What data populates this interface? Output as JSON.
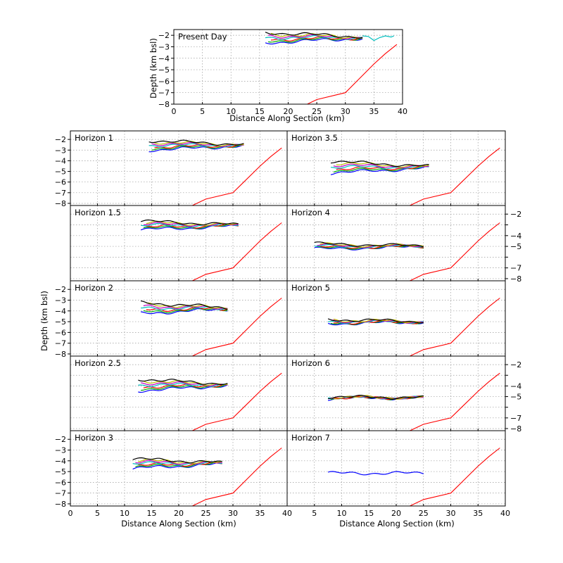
{
  "figure": {
    "top_xlabel": "Distance Along Section (km)",
    "top_ylabel": "Depth (km bsl)",
    "grid_ylabel": "Depth (km bsl)",
    "bottom_xlabel_left": "Distance Along Section (km)",
    "bottom_xlabel_right": "Distance Along Section (km)"
  },
  "chart_data": {
    "type": "line",
    "x_range": [
      0,
      40
    ],
    "x_ticks": [
      0,
      5,
      10,
      15,
      20,
      25,
      30,
      35,
      40
    ],
    "y_range_top": [
      -1.5,
      -8
    ],
    "y_range_panels": [
      -1.2,
      -8.2
    ],
    "y_ticks_top": [
      -2,
      -3,
      -4,
      -5,
      -6,
      -7,
      -8
    ],
    "y_ticks_panels_left": [
      -2,
      -3,
      -4,
      -5,
      -6,
      -7,
      -8
    ],
    "y_ticks_panels_right": [
      -2,
      -4,
      -5,
      -7,
      -8
    ],
    "red_profile": {
      "x": [
        0,
        15,
        22.5,
        25,
        30,
        32,
        35,
        37,
        39
      ],
      "y": [
        -10.5,
        -9.5,
        -8.2,
        -7.6,
        -7,
        -6,
        -4.5,
        -3.6,
        -2.8
      ]
    },
    "colors": [
      "#0000ff",
      "#00aa00",
      "#ff0000",
      "#00bfbf",
      "#bf00bf",
      "#bfbf00",
      "#000000"
    ],
    "panels": [
      {
        "id": "present",
        "label": "Present Day",
        "x_start": 16,
        "x_end": 33,
        "depth": -2.2,
        "spread": 0.45,
        "cyan_tail": true
      },
      {
        "id": "h1",
        "label": "Horizon 1",
        "x_start": 14.5,
        "x_end": 32,
        "depth": -2.55,
        "spread": 0.45
      },
      {
        "id": "h3_5",
        "label": "Horizon 3.5",
        "x_start": 8,
        "x_end": 26,
        "depth": -4.6,
        "spread": 0.55
      },
      {
        "id": "h1_5",
        "label": "Horizon 1.5",
        "x_start": 13,
        "x_end": 31,
        "depth": -3.05,
        "spread": 0.4
      },
      {
        "id": "h4",
        "label": "Horizon 4",
        "x_start": 5,
        "x_end": 25,
        "depth": -5.0,
        "spread": 0.25
      },
      {
        "id": "h2",
        "label": "Horizon 2",
        "x_start": 13,
        "x_end": 29,
        "depth": -3.75,
        "spread": 0.5
      },
      {
        "id": "h5",
        "label": "Horizon 5",
        "x_start": 7.5,
        "x_end": 25,
        "depth": -5.0,
        "spread": 0.2
      },
      {
        "id": "h2_5",
        "label": "Horizon 2.5",
        "x_start": 12.5,
        "x_end": 29,
        "depth": -3.9,
        "spread": 0.55
      },
      {
        "id": "h6",
        "label": "Horizon 6",
        "x_start": 7.5,
        "x_end": 25,
        "depth": -5.1,
        "spread": 0.08
      },
      {
        "id": "h3",
        "label": "Horizon 3",
        "x_start": 11.5,
        "x_end": 28,
        "depth": -4.25,
        "spread": 0.45
      },
      {
        "id": "h7",
        "label": "Horizon 7",
        "x_start": 7.5,
        "x_end": 25,
        "depth": -5.15,
        "spread": 0.0
      }
    ]
  }
}
